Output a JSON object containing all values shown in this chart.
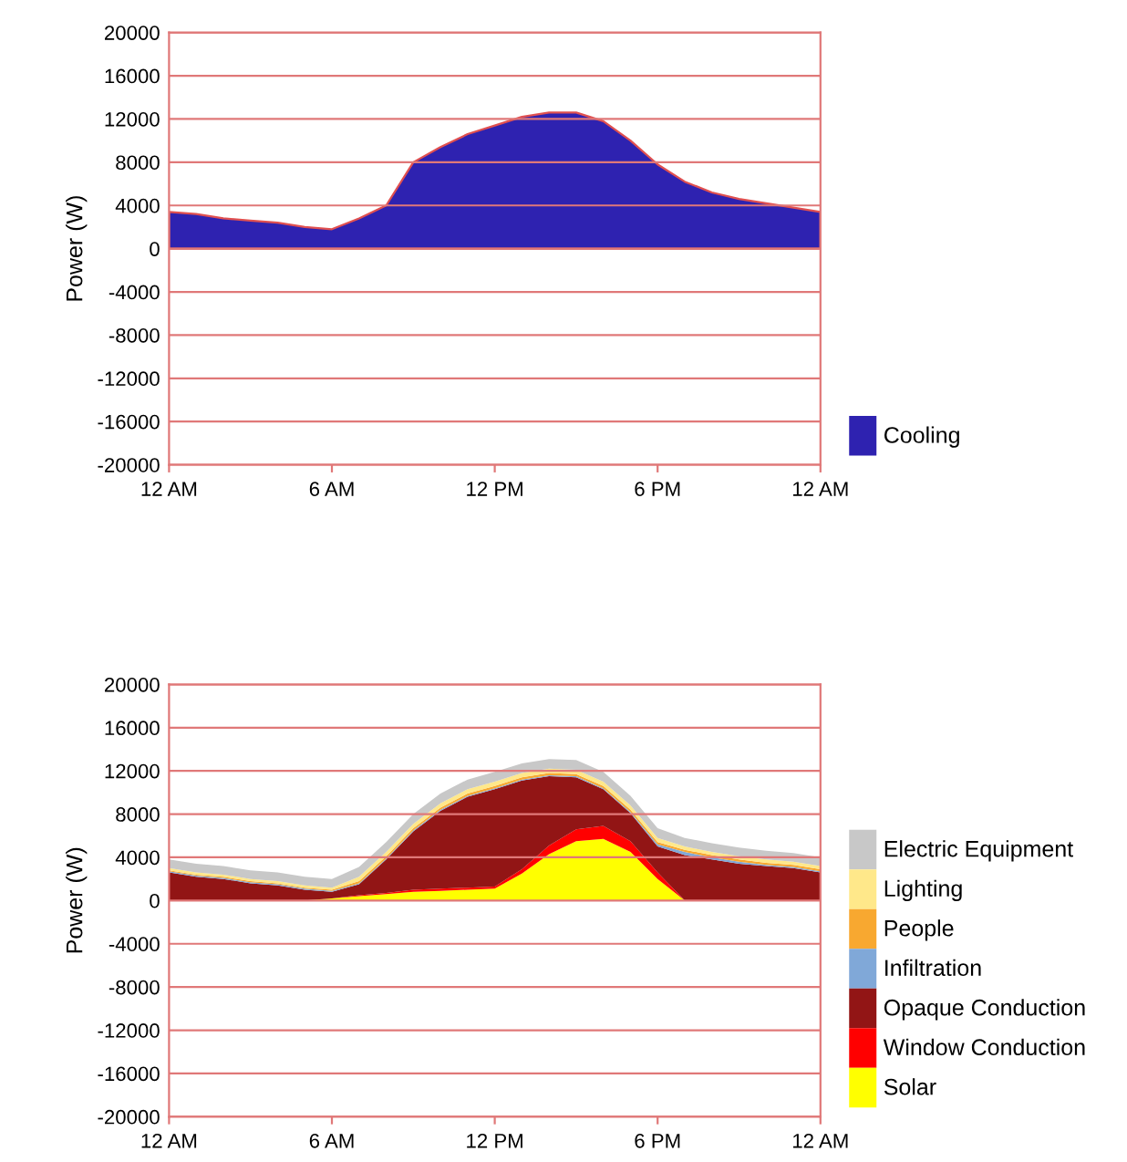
{
  "chart_data": [
    {
      "type": "area",
      "ylabel": "Power (W)",
      "categories": [
        "12 AM",
        null,
        null,
        null,
        null,
        null,
        "6 AM",
        null,
        null,
        null,
        null,
        null,
        "12 PM",
        null,
        null,
        null,
        null,
        null,
        "6 PM",
        null,
        null,
        null,
        null,
        null,
        "12 AM"
      ],
      "ylim": [
        -20000,
        20000
      ],
      "yticks": [
        -20000,
        -16000,
        -12000,
        -8000,
        -4000,
        0,
        4000,
        8000,
        12000,
        16000,
        20000
      ],
      "grid": "y",
      "legend": "right",
      "series": [
        {
          "name": "Cooling",
          "color": "#2e22b0",
          "values": [
            3400,
            3200,
            2800,
            2600,
            2400,
            2000,
            1800,
            2800,
            4000,
            8000,
            9400,
            10600,
            11400,
            12200,
            12600,
            12600,
            11800,
            10000,
            7800,
            6200,
            5200,
            4600,
            4200,
            3800,
            3400
          ]
        }
      ]
    },
    {
      "type": "area",
      "stacked": true,
      "ylabel": "Power (W)",
      "categories": [
        "12 AM",
        null,
        null,
        null,
        null,
        null,
        "6 AM",
        null,
        null,
        null,
        null,
        null,
        "12 PM",
        null,
        null,
        null,
        null,
        null,
        "6 PM",
        null,
        null,
        null,
        null,
        null,
        "12 AM"
      ],
      "ylim": [
        -20000,
        20000
      ],
      "yticks": [
        -20000,
        -16000,
        -12000,
        -8000,
        -4000,
        0,
        4000,
        8000,
        12000,
        16000,
        20000
      ],
      "grid": "y",
      "legend": "right",
      "series": [
        {
          "name": "Solar",
          "color": "#ffff00",
          "values": [
            0,
            0,
            0,
            0,
            0,
            0,
            200,
            400,
            600,
            800,
            900,
            1000,
            1100,
            2500,
            4300,
            5500,
            5700,
            4500,
            2000,
            0,
            0,
            0,
            0,
            0,
            0
          ]
        },
        {
          "name": "Window Conduction",
          "color": "#ff0000",
          "values": [
            0,
            0,
            0,
            0,
            0,
            0,
            0,
            100,
            100,
            200,
            200,
            200,
            200,
            400,
            800,
            1100,
            1200,
            1000,
            600,
            0,
            0,
            0,
            0,
            0,
            0
          ]
        },
        {
          "name": "Opaque Conduction",
          "color": "#921515",
          "values": [
            2600,
            2200,
            2000,
            1600,
            1400,
            1000,
            600,
            1000,
            3100,
            5400,
            7200,
            8400,
            9000,
            8200,
            6400,
            4800,
            3400,
            2600,
            2400,
            4200,
            3800,
            3400,
            3200,
            3000,
            2600
          ]
        },
        {
          "name": "Infiltration",
          "color": "#80a8d8",
          "values": [
            100,
            100,
            100,
            100,
            100,
            100,
            100,
            100,
            100,
            100,
            100,
            100,
            100,
            100,
            100,
            100,
            100,
            100,
            200,
            300,
            200,
            200,
            100,
            100,
            100
          ]
        },
        {
          "name": "People",
          "color": "#f8a830",
          "values": [
            100,
            100,
            100,
            100,
            100,
            100,
            100,
            200,
            200,
            200,
            200,
            200,
            200,
            200,
            200,
            200,
            200,
            200,
            200,
            200,
            200,
            200,
            200,
            200,
            200
          ]
        },
        {
          "name": "Lighting",
          "color": "#ffe88a",
          "values": [
            200,
            200,
            200,
            200,
            200,
            200,
            200,
            400,
            400,
            400,
            400,
            400,
            400,
            400,
            400,
            400,
            400,
            400,
            400,
            300,
            300,
            300,
            300,
            300,
            300
          ]
        },
        {
          "name": "Electric Equipment",
          "color": "#c8c8c8",
          "values": [
            800,
            800,
            800,
            800,
            800,
            800,
            800,
            900,
            900,
            900,
            900,
            900,
            900,
            900,
            900,
            900,
            900,
            900,
            900,
            800,
            800,
            800,
            800,
            800,
            800
          ]
        }
      ]
    }
  ]
}
